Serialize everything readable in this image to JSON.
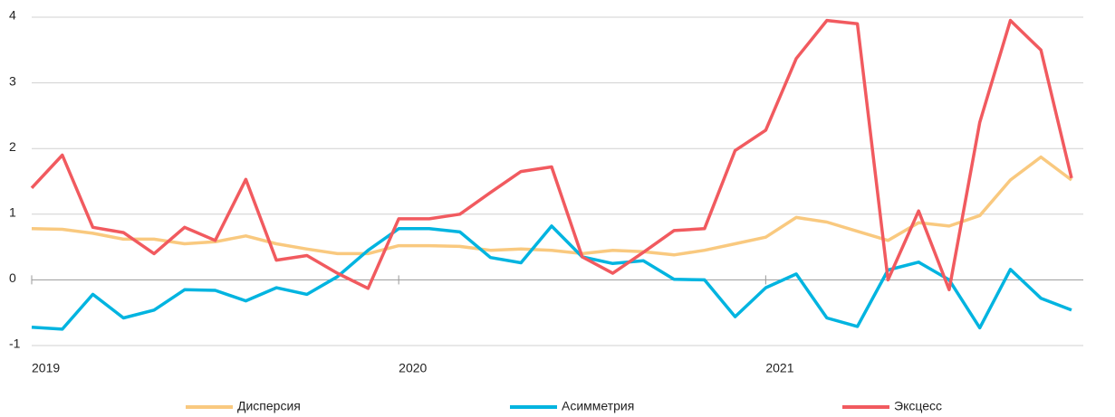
{
  "chart_data": {
    "type": "line",
    "categories": [
      "2019",
      null,
      null,
      null,
      null,
      null,
      null,
      null,
      null,
      null,
      null,
      null,
      "2020",
      null,
      null,
      null,
      null,
      null,
      null,
      null,
      null,
      null,
      null,
      null,
      "2021",
      null,
      null,
      null,
      null,
      null,
      null,
      null,
      null,
      null,
      null
    ],
    "series": [
      {
        "name": "Дисперсия",
        "color": "#f9c97f",
        "values": [
          0.78,
          0.77,
          0.71,
          0.62,
          0.62,
          0.55,
          0.58,
          0.67,
          0.55,
          0.47,
          0.4,
          0.4,
          0.52,
          0.52,
          0.51,
          0.45,
          0.47,
          0.45,
          0.4,
          0.45,
          0.43,
          0.38,
          0.45,
          0.55,
          0.65,
          0.95,
          0.88,
          0.74,
          0.6,
          0.87,
          0.82,
          0.98,
          1.52,
          1.87,
          1.52
        ]
      },
      {
        "name": "Асимметрия",
        "color": "#00b4e0",
        "values": [
          -0.72,
          -0.75,
          -0.22,
          -0.58,
          -0.46,
          -0.15,
          -0.16,
          -0.32,
          -0.12,
          -0.22,
          0.05,
          0.45,
          0.78,
          0.78,
          0.73,
          0.34,
          0.26,
          0.82,
          0.35,
          0.25,
          0.29,
          0.01,
          0.0,
          -0.56,
          -0.12,
          0.09,
          -0.58,
          -0.71,
          0.15,
          0.27,
          0.0,
          -0.73,
          0.16,
          -0.28,
          -0.46
        ]
      },
      {
        "name": "Эксцесс",
        "color": "#f15a5f",
        "values": [
          1.4,
          1.9,
          0.8,
          0.72,
          0.4,
          0.8,
          0.6,
          1.53,
          0.3,
          0.37,
          0.1,
          -0.13,
          0.93,
          0.93,
          1.0,
          1.33,
          1.65,
          1.72,
          0.35,
          0.1,
          0.42,
          0.75,
          0.78,
          1.97,
          2.28,
          3.37,
          3.95,
          3.9,
          0.0,
          1.05,
          -0.15,
          2.4,
          3.95,
          3.5,
          1.55
        ]
      }
    ],
    "ylim": [
      -1,
      4
    ],
    "yticks": [
      -1,
      0,
      1,
      2,
      3,
      4
    ],
    "grid": true,
    "legend": "bottom"
  }
}
